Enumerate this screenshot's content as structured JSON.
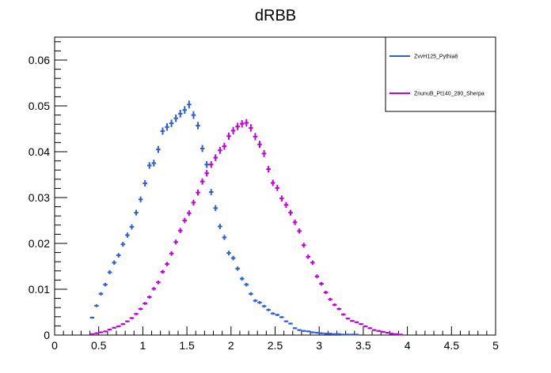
{
  "chart_data": {
    "type": "scatter",
    "title": "dRBB",
    "xlabel": "",
    "ylabel": "",
    "xlim": [
      0,
      5
    ],
    "ylim": [
      0,
      0.065
    ],
    "x_ticks": [
      "0",
      "0.5",
      "1",
      "1.5",
      "2",
      "2.5",
      "3",
      "3.5",
      "4",
      "4.5",
      "5"
    ],
    "y_ticks": [
      "0",
      "0.01",
      "0.02",
      "0.03",
      "0.04",
      "0.05",
      "0.06"
    ],
    "legend_position": "top-right",
    "bin_width": 0.05,
    "series": [
      {
        "name": "ZvvH125_Pythia8",
        "color": "#2a5fd6",
        "x": [
          0.425,
          0.475,
          0.525,
          0.575,
          0.625,
          0.675,
          0.725,
          0.775,
          0.825,
          0.875,
          0.925,
          0.975,
          1.025,
          1.075,
          1.125,
          1.175,
          1.225,
          1.275,
          1.325,
          1.375,
          1.425,
          1.475,
          1.525,
          1.575,
          1.625,
          1.675,
          1.725,
          1.775,
          1.825,
          1.875,
          1.925,
          1.975,
          2.025,
          2.075,
          2.125,
          2.175,
          2.225,
          2.275,
          2.325,
          2.375,
          2.425,
          2.475,
          2.525,
          2.575,
          2.625,
          2.675,
          2.725,
          2.775,
          2.825,
          2.875,
          2.925,
          2.975,
          3.025,
          3.075,
          3.125,
          3.175,
          3.225,
          3.275,
          3.325,
          3.375,
          3.425
        ],
        "values": [
          0.0038,
          0.0064,
          0.009,
          0.011,
          0.0137,
          0.0158,
          0.0174,
          0.0198,
          0.0218,
          0.0236,
          0.0267,
          0.0296,
          0.0331,
          0.037,
          0.0375,
          0.0405,
          0.0445,
          0.0454,
          0.0462,
          0.0473,
          0.0483,
          0.0491,
          0.0503,
          0.048,
          0.0457,
          0.0407,
          0.0372,
          0.0312,
          0.0277,
          0.0237,
          0.0213,
          0.0179,
          0.0168,
          0.0145,
          0.0123,
          0.011,
          0.009,
          0.0075,
          0.0071,
          0.0063,
          0.0055,
          0.0047,
          0.0044,
          0.0039,
          0.003,
          0.0025,
          0.0015,
          0.0011,
          0.0009,
          0.0008,
          0.0006,
          0.0005,
          0.0004,
          0.0003,
          0.0003,
          0.0002,
          0.0002,
          0.0001,
          0.0001,
          0.0001,
          0.0001
        ]
      },
      {
        "name": "ZnunuB_Pt140_280_Sherpa",
        "color": "#c000d8",
        "x": [
          0.425,
          0.475,
          0.525,
          0.575,
          0.625,
          0.675,
          0.725,
          0.775,
          0.825,
          0.875,
          0.925,
          0.975,
          1.025,
          1.075,
          1.125,
          1.175,
          1.225,
          1.275,
          1.325,
          1.375,
          1.425,
          1.475,
          1.525,
          1.575,
          1.625,
          1.675,
          1.725,
          1.775,
          1.825,
          1.875,
          1.925,
          1.975,
          2.025,
          2.075,
          2.125,
          2.175,
          2.225,
          2.275,
          2.325,
          2.375,
          2.425,
          2.475,
          2.525,
          2.575,
          2.625,
          2.675,
          2.725,
          2.775,
          2.825,
          2.875,
          2.925,
          2.975,
          3.025,
          3.075,
          3.125,
          3.175,
          3.225,
          3.275,
          3.325,
          3.375,
          3.425,
          3.475,
          3.525,
          3.575,
          3.625,
          3.675,
          3.725,
          3.775,
          3.825,
          3.875,
          3.925
        ],
        "values": [
          0.0002,
          0.0004,
          0.0006,
          0.0008,
          0.0012,
          0.0016,
          0.0019,
          0.0024,
          0.003,
          0.0037,
          0.0046,
          0.0057,
          0.0069,
          0.0083,
          0.0101,
          0.0115,
          0.0138,
          0.0155,
          0.0178,
          0.0203,
          0.0228,
          0.025,
          0.0266,
          0.0289,
          0.0311,
          0.0335,
          0.0353,
          0.0372,
          0.0387,
          0.0403,
          0.0412,
          0.0434,
          0.0446,
          0.0455,
          0.0461,
          0.0463,
          0.0452,
          0.0433,
          0.0416,
          0.0396,
          0.0362,
          0.0332,
          0.0321,
          0.0298,
          0.0284,
          0.0267,
          0.0246,
          0.0227,
          0.0196,
          0.0171,
          0.0158,
          0.0128,
          0.0112,
          0.0093,
          0.0078,
          0.0066,
          0.0057,
          0.0045,
          0.0036,
          0.0031,
          0.0028,
          0.0024,
          0.0019,
          0.0015,
          0.0011,
          0.0009,
          0.0007,
          0.0005,
          0.0003,
          0.0002,
          0.0001
        ]
      }
    ]
  }
}
